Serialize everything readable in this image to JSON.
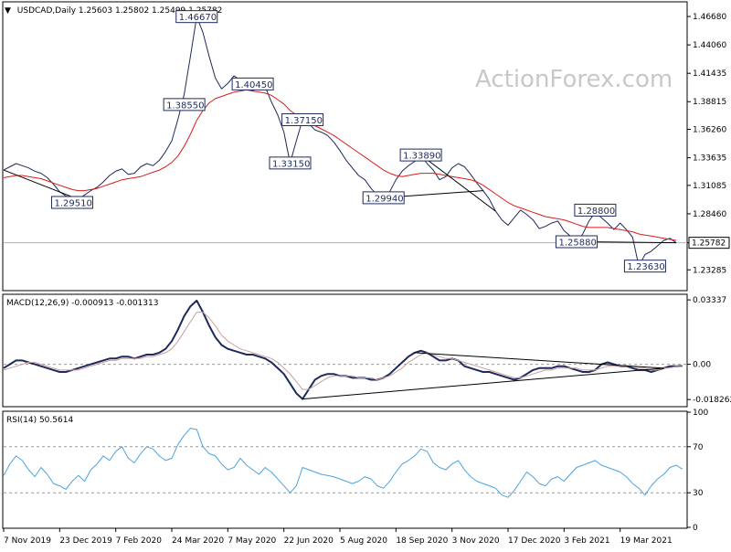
{
  "colors": {
    "price": "#1f2a5c",
    "ma": "#d91c1c",
    "macd": "#1f2a5c",
    "signal": "#c8a0a0",
    "rsi": "#4aa3df",
    "label_border": "#1f2a5c",
    "axis": "#000000",
    "grid_dash": "#9a9a9a",
    "watermark": "#c8c8c8"
  },
  "watermark": "ActionForex.com",
  "chart_data": [
    {
      "panel": "price",
      "type": "line",
      "title": "USDCAD,Daily",
      "header": "USDCAD,Daily  1.25603 1.25802 1.25499 1.25782",
      "ohlc": {
        "open": "1.25603",
        "high": "1.25802",
        "low": "1.25499",
        "close": "1.25782"
      },
      "ylim": [
        1.2145,
        1.4795
      ],
      "yticks": [
        "1.46680",
        "1.44060",
        "1.41435",
        "1.38815",
        "1.36260",
        "1.33635",
        "1.31085",
        "1.28460",
        "1.25782",
        "1.23285"
      ],
      "ytick_values": [
        1.4668,
        1.4406,
        1.41435,
        1.38815,
        1.3626,
        1.33635,
        1.31085,
        1.2846,
        1.25782,
        1.23285
      ],
      "current_price_label": "1.25782",
      "current_price": 1.25782,
      "series": [
        {
          "name": "",
          "values": [
            1.325,
            1.328,
            1.331,
            1.329,
            1.327,
            1.324,
            1.322,
            1.318,
            1.312,
            1.305,
            1.301,
            1.299,
            1.298,
            1.302,
            1.306,
            1.309,
            1.314,
            1.32,
            1.324,
            1.326,
            1.321,
            1.322,
            1.328,
            1.331,
            1.329,
            1.334,
            1.342,
            1.352,
            1.372,
            1.395,
            1.43,
            1.4667,
            1.452,
            1.43,
            1.41,
            1.4,
            1.405,
            1.412,
            1.408,
            1.409,
            1.398,
            1.403,
            1.402,
            1.388,
            1.376,
            1.36,
            1.3315,
            1.352,
            1.3715,
            1.368,
            1.362,
            1.36,
            1.357,
            1.351,
            1.343,
            1.334,
            1.327,
            1.32,
            1.316,
            1.308,
            1.302,
            1.2994,
            1.305,
            1.316,
            1.324,
            1.329,
            1.333,
            1.3389,
            1.331,
            1.325,
            1.316,
            1.319,
            1.327,
            1.331,
            1.328,
            1.321,
            1.313,
            1.306,
            1.298,
            1.287,
            1.279,
            1.274,
            1.281,
            1.288,
            1.284,
            1.279,
            1.271,
            1.273,
            1.276,
            1.278,
            1.269,
            1.264,
            1.2588,
            1.266,
            1.278,
            1.286,
            1.281,
            1.276,
            1.27,
            1.276,
            1.27,
            1.263,
            1.2363,
            1.247,
            1.25,
            1.255,
            1.26,
            1.262,
            1.25782
          ]
        },
        {
          "name": "",
          "values": [
            1.318,
            1.319,
            1.32,
            1.32,
            1.319,
            1.318,
            1.317,
            1.315,
            1.313,
            1.311,
            1.309,
            1.307,
            1.306,
            1.306,
            1.307,
            1.308,
            1.31,
            1.312,
            1.314,
            1.316,
            1.317,
            1.318,
            1.319,
            1.321,
            1.323,
            1.325,
            1.328,
            1.332,
            1.338,
            1.347,
            1.358,
            1.371,
            1.38,
            1.387,
            1.391,
            1.393,
            1.395,
            1.397,
            1.398,
            1.399,
            1.398,
            1.397,
            1.396,
            1.394,
            1.39,
            1.386,
            1.38,
            1.376,
            1.372,
            1.369,
            1.366,
            1.363,
            1.36,
            1.357,
            1.353,
            1.349,
            1.345,
            1.341,
            1.337,
            1.333,
            1.329,
            1.325,
            1.322,
            1.32,
            1.319,
            1.32,
            1.321,
            1.322,
            1.322,
            1.322,
            1.321,
            1.32,
            1.319,
            1.318,
            1.317,
            1.316,
            1.314,
            1.311,
            1.307,
            1.303,
            1.299,
            1.295,
            1.292,
            1.29,
            1.288,
            1.286,
            1.284,
            1.282,
            1.281,
            1.28,
            1.279,
            1.277,
            1.275,
            1.273,
            1.272,
            1.272,
            1.272,
            1.272,
            1.271,
            1.27,
            1.269,
            1.268,
            1.266,
            1.265,
            1.264,
            1.263,
            1.262,
            1.261,
            1.26
          ]
        }
      ],
      "annotations": [
        {
          "text": "1.46670",
          "x_index": 31,
          "value": 1.4667
        },
        {
          "text": "1.38550",
          "x_index": 29,
          "value": 1.3855
        },
        {
          "text": "1.40450",
          "x_index": 40,
          "value": 1.4045
        },
        {
          "text": "1.37150",
          "x_index": 48,
          "value": 1.3715
        },
        {
          "text": "1.33150",
          "x_index": 46,
          "value": 1.3315
        },
        {
          "text": "1.29510",
          "x_index": 11,
          "value": 1.2951
        },
        {
          "text": "1.29940",
          "x_index": 61,
          "value": 1.2994
        },
        {
          "text": "1.33890",
          "x_index": 67,
          "value": 1.3389
        },
        {
          "text": "1.28800",
          "x_index": 95,
          "value": 1.288
        },
        {
          "text": "1.25880",
          "x_index": 92,
          "value": 1.2588
        },
        {
          "text": "1.23630",
          "x_index": 103,
          "value": 1.2363
        }
      ]
    },
    {
      "panel": "macd",
      "type": "line",
      "title": "MACD(12,26,9) -0.000913 -0.001313",
      "ylim": [
        -0.0215,
        0.0358
      ],
      "yticks": [
        "0.03337",
        "0.00",
        "-0.018262"
      ],
      "ytick_values": [
        0.03337,
        0.0,
        -0.018262
      ],
      "series": [
        {
          "name": "",
          "values": [
            -0.002,
            0.0,
            0.002,
            0.002,
            0.001,
            0.0,
            -0.001,
            -0.002,
            -0.003,
            -0.004,
            -0.004,
            -0.003,
            -0.002,
            -0.001,
            0.0,
            0.001,
            0.002,
            0.003,
            0.003,
            0.004,
            0.004,
            0.003,
            0.004,
            0.005,
            0.005,
            0.006,
            0.008,
            0.012,
            0.018,
            0.025,
            0.03,
            0.033,
            0.027,
            0.02,
            0.014,
            0.01,
            0.008,
            0.007,
            0.006,
            0.005,
            0.005,
            0.004,
            0.003,
            0.001,
            -0.002,
            -0.005,
            -0.01,
            -0.015,
            -0.018,
            -0.013,
            -0.008,
            -0.006,
            -0.005,
            -0.005,
            -0.006,
            -0.006,
            -0.007,
            -0.007,
            -0.007,
            -0.008,
            -0.008,
            -0.007,
            -0.005,
            -0.002,
            0.001,
            0.004,
            0.006,
            0.007,
            0.006,
            0.004,
            0.002,
            0.002,
            0.003,
            0.002,
            -0.001,
            -0.002,
            -0.003,
            -0.004,
            -0.004,
            -0.005,
            -0.006,
            -0.007,
            -0.008,
            -0.007,
            -0.005,
            -0.003,
            -0.002,
            -0.002,
            -0.002,
            -0.001,
            -0.001,
            -0.002,
            -0.003,
            -0.004,
            -0.004,
            -0.003,
            0.0,
            0.001,
            0.0,
            -0.001,
            -0.001,
            -0.002,
            -0.003,
            -0.003,
            -0.004,
            -0.003,
            -0.002,
            -0.001,
            -0.001,
            -0.0009
          ]
        },
        {
          "name": "",
          "values": [
            -0.003,
            -0.002,
            -0.001,
            0.0,
            0.001,
            0.001,
            0.0,
            -0.001,
            -0.002,
            -0.003,
            -0.003,
            -0.003,
            -0.003,
            -0.002,
            -0.001,
            0.0,
            0.001,
            0.002,
            0.002,
            0.003,
            0.003,
            0.003,
            0.003,
            0.004,
            0.004,
            0.005,
            0.006,
            0.008,
            0.012,
            0.017,
            0.022,
            0.027,
            0.027,
            0.024,
            0.02,
            0.015,
            0.012,
            0.01,
            0.008,
            0.007,
            0.006,
            0.005,
            0.004,
            0.003,
            0.001,
            -0.002,
            -0.005,
            -0.009,
            -0.013,
            -0.013,
            -0.011,
            -0.009,
            -0.007,
            -0.006,
            -0.006,
            -0.006,
            -0.006,
            -0.007,
            -0.007,
            -0.007,
            -0.008,
            -0.007,
            -0.006,
            -0.004,
            -0.002,
            0.001,
            0.003,
            0.005,
            0.006,
            0.005,
            0.004,
            0.003,
            0.003,
            0.002,
            0.001,
            0.0,
            -0.001,
            -0.002,
            -0.003,
            -0.004,
            -0.005,
            -0.006,
            -0.007,
            -0.007,
            -0.006,
            -0.005,
            -0.004,
            -0.003,
            -0.003,
            -0.002,
            -0.002,
            -0.002,
            -0.002,
            -0.003,
            -0.003,
            -0.003,
            -0.002,
            -0.001,
            -0.001,
            -0.001,
            -0.001,
            -0.001,
            -0.002,
            -0.002,
            -0.003,
            -0.003,
            -0.002,
            -0.002,
            -0.001,
            -0.0013
          ]
        }
      ]
    },
    {
      "panel": "rsi",
      "type": "line",
      "title": "RSI(14) 50.5614",
      "ylim": [
        0,
        100
      ],
      "yticks": [
        "100",
        "70",
        "30",
        "0"
      ],
      "ytick_values": [
        100,
        70,
        30,
        0
      ],
      "series": [
        {
          "name": "",
          "values": [
            45,
            55,
            62,
            58,
            50,
            44,
            52,
            46,
            38,
            36,
            33,
            40,
            45,
            40,
            50,
            55,
            62,
            58,
            66,
            70,
            60,
            56,
            64,
            70,
            68,
            62,
            58,
            60,
            72,
            80,
            86,
            85,
            70,
            64,
            62,
            55,
            50,
            52,
            60,
            54,
            50,
            46,
            52,
            48,
            42,
            36,
            30,
            36,
            52,
            50,
            48,
            46,
            45,
            44,
            42,
            40,
            38,
            40,
            44,
            42,
            36,
            34,
            40,
            48,
            55,
            58,
            62,
            68,
            66,
            56,
            52,
            50,
            55,
            58,
            50,
            44,
            40,
            38,
            36,
            34,
            28,
            26,
            32,
            40,
            48,
            44,
            38,
            36,
            42,
            44,
            40,
            46,
            52,
            54,
            56,
            58,
            54,
            52,
            50,
            48,
            44,
            38,
            34,
            28,
            36,
            42,
            46,
            52,
            54,
            50.56
          ]
        }
      ]
    }
  ],
  "x_axis": {
    "labels": [
      "7 Nov 2019",
      "23 Dec 2019",
      "7 Feb 2020",
      "24 Mar 2020",
      "7 May 2020",
      "22 Jun 2020",
      "5 Aug 2020",
      "18 Sep 2020",
      "3 Nov 2020",
      "17 Dec 2020",
      "3 Feb 2021",
      "19 Mar 2021"
    ],
    "label_indices": [
      0,
      9,
      18,
      27,
      36,
      45,
      54,
      63,
      72,
      81,
      90,
      99
    ]
  }
}
